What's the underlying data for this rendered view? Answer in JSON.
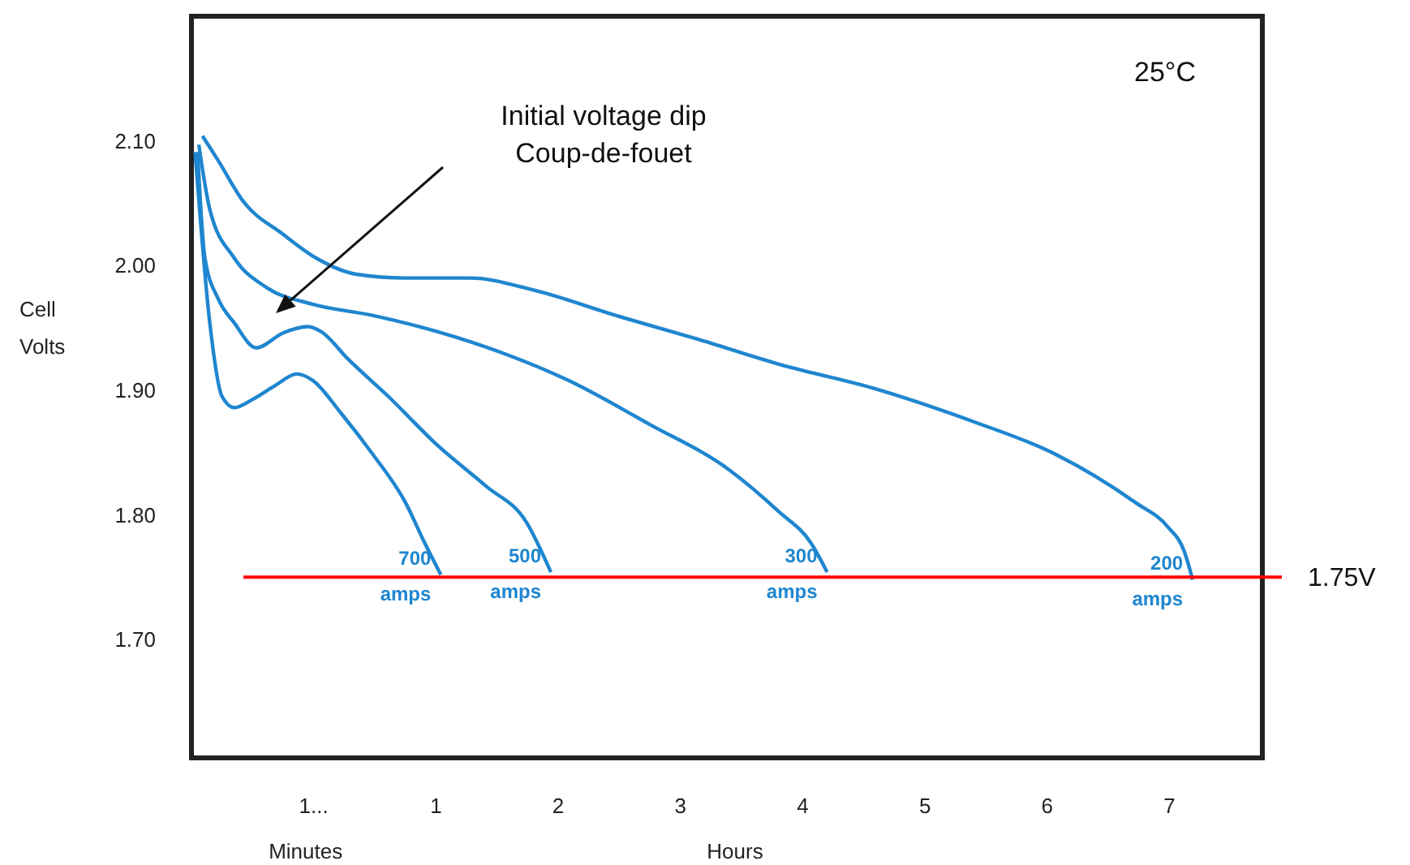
{
  "chart_data": {
    "type": "line",
    "ylabel": "Cell Volts",
    "xlabel": "Hours",
    "xlim": [
      -1,
      7.76
    ],
    "ylim": [
      1.605,
      2.2
    ],
    "xticks": [
      {
        "value": 0,
        "label": "1..."
      },
      1,
      2,
      3,
      4,
      5,
      6,
      7
    ],
    "yticks": [
      {
        "value": 1.7,
        "label": "1.70"
      },
      {
        "value": 1.8,
        "label": "1.80"
      },
      {
        "value": 1.9,
        "label": "1.90"
      },
      {
        "value": 2.0,
        "label": "2.00"
      },
      {
        "value": 2.1,
        "label": "2.10"
      }
    ],
    "grid": false,
    "marker": "none",
    "line_style": "solid",
    "series": [
      {
        "name": "700 amps",
        "color": "#1f86cf",
        "x": [
          -0.97,
          -0.85,
          -0.75,
          -0.65,
          -0.51,
          -0.31,
          -0.14,
          -0.01,
          0.22,
          0.48,
          0.75,
          0.91,
          1.04
        ],
        "values": [
          2.091,
          1.954,
          1.895,
          1.886,
          1.892,
          1.904,
          1.913,
          1.908,
          1.882,
          1.849,
          1.81,
          1.777,
          1.752
        ]
      },
      {
        "name": "500 amps",
        "color": "#1f86cf",
        "x": [
          -0.95,
          -0.89,
          -0.78,
          -0.65,
          -0.47,
          -0.25,
          -0.05,
          0.06,
          0.28,
          0.61,
          1.01,
          1.41,
          1.74,
          1.94
        ],
        "values": [
          2.091,
          2.006,
          1.973,
          1.954,
          1.934,
          1.946,
          1.951,
          1.947,
          1.925,
          1.895,
          1.856,
          1.823,
          1.794,
          1.754
        ]
      },
      {
        "name": "300 amps",
        "color": "#1f86cf",
        "x": [
          -0.94,
          -0.85,
          -0.65,
          -0.38,
          -0.01,
          0.48,
          1.01,
          1.54,
          2.08,
          2.74,
          3.4,
          3.8,
          4.07,
          4.2
        ],
        "values": [
          2.097,
          2.045,
          2.006,
          1.982,
          1.969,
          1.96,
          1.947,
          1.93,
          1.908,
          1.873,
          1.836,
          1.803,
          1.777,
          1.754
        ]
      },
      {
        "name": "200 amps",
        "color": "#1f86cf",
        "x": [
          -0.91,
          -0.78,
          -0.58,
          -0.25,
          0.02,
          0.35,
          0.75,
          1.28,
          1.81,
          2.47,
          3.14,
          3.8,
          4.6,
          5.39,
          6.06,
          6.72,
          6.99,
          7.12,
          7.19
        ],
        "values": [
          2.104,
          2.084,
          2.052,
          2.025,
          2.006,
          1.993,
          1.99,
          1.99,
          1.98,
          1.96,
          1.941,
          1.921,
          1.901,
          1.875,
          1.849,
          1.81,
          1.79,
          1.771,
          1.748
        ]
      }
    ],
    "ref_lines": [
      {
        "axis": "y",
        "value": 1.75,
        "label": "1.75V",
        "color": "#ff0000"
      }
    ],
    "annotations": [
      "25°C",
      "Minutes",
      "Initial voltage dip\nCoup-de-fouet"
    ]
  }
}
